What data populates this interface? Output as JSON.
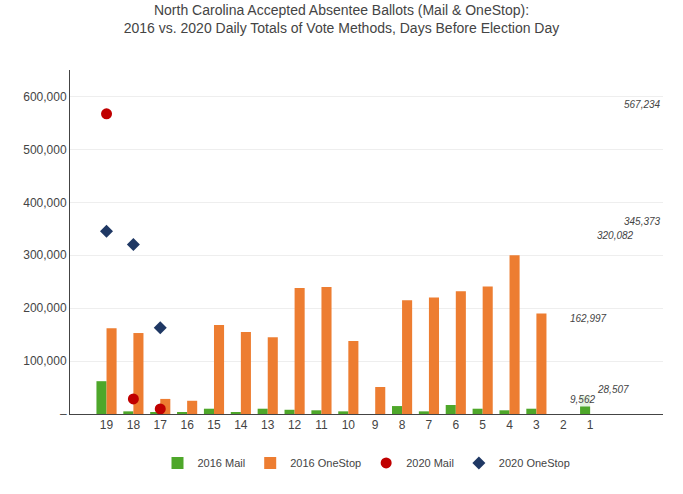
{
  "chart_data": {
    "type": "bar",
    "title": "North Carolina Accepted Absentee Ballots (Mail & OneStop):",
    "subtitle": "2016 vs. 2020 Daily Totals of Vote Methods, Days Before Election Day",
    "categories": [
      "19",
      "18",
      "17",
      "16",
      "15",
      "14",
      "13",
      "12",
      "11",
      "10",
      "9",
      "8",
      "7",
      "6",
      "5",
      "4",
      "3",
      "2",
      "1"
    ],
    "series": [
      {
        "name": "2016 Mail",
        "type": "bar",
        "color": "#4EA72A",
        "values": [
          62000,
          5000,
          3000,
          2000,
          10000,
          2000,
          10000,
          8000,
          7000,
          5000,
          0,
          15000,
          5000,
          17000,
          10000,
          7000,
          10000,
          0,
          35000
        ]
      },
      {
        "name": "2016 OneStop",
        "type": "bar",
        "color": "#ED7D31",
        "values": [
          162000,
          153000,
          28507,
          25000,
          168000,
          155000,
          145000,
          238000,
          240000,
          138000,
          51000,
          215000,
          220000,
          232000,
          241000,
          300000,
          190000,
          0,
          0
        ]
      },
      {
        "name": "2020 Mail",
        "type": "scatter",
        "marker": "circle",
        "color": "#C00000",
        "values": [
          567234,
          28507,
          9562,
          null,
          null,
          null,
          null,
          null,
          null,
          null,
          null,
          null,
          null,
          null,
          null,
          null,
          null,
          null,
          null
        ]
      },
      {
        "name": "2020 OneStop",
        "type": "scatter",
        "marker": "diamond",
        "color": "#1F3864",
        "values": [
          345373,
          320082,
          162997,
          null,
          null,
          null,
          null,
          null,
          null,
          null,
          null,
          null,
          null,
          null,
          null,
          null,
          null,
          null,
          null
        ]
      }
    ],
    "annotations": [
      {
        "text": "567,234",
        "x": "19",
        "y": 567234
      },
      {
        "text": "345,373",
        "x": "19",
        "y": 345373
      },
      {
        "text": "320,082",
        "x": "18",
        "y": 320082
      },
      {
        "text": "162,997",
        "x": "17",
        "y": 162997
      },
      {
        "text": "28,507",
        "x": "18",
        "y": 28507
      },
      {
        "text": "9,562",
        "x": "17",
        "y": 9562
      }
    ],
    "ylim": [
      0,
      650000
    ],
    "yticks": [
      {
        "value": 0,
        "label": "‒"
      },
      {
        "value": 100000,
        "label": "100,000"
      },
      {
        "value": 200000,
        "label": "200,000"
      },
      {
        "value": 300000,
        "label": "300,000"
      },
      {
        "value": 400000,
        "label": "400,000"
      },
      {
        "value": 500000,
        "label": "500,000"
      },
      {
        "value": 600000,
        "label": "600,000"
      }
    ],
    "grid": true,
    "legend": "bottom"
  }
}
